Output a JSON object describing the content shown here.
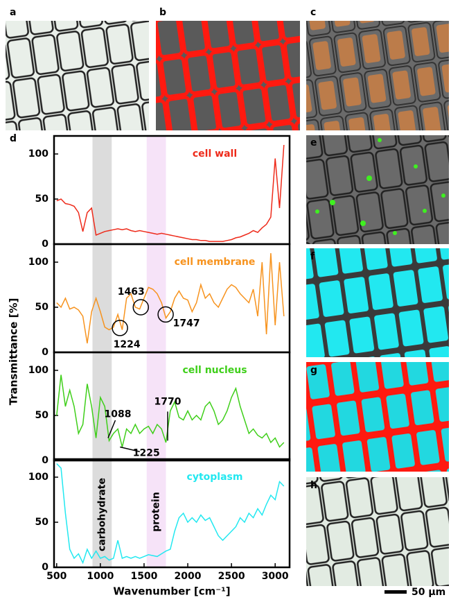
{
  "figure": {
    "panel_labels": [
      "a",
      "b",
      "c",
      "d",
      "e",
      "f",
      "g",
      "h"
    ],
    "y_label": "Transmittance [%]",
    "x_label": "Wavenumber [cm⁻¹]",
    "scale_bar": "50 μm",
    "bands": [
      {
        "label": "carbohydrate",
        "range": [
          910,
          1130
        ],
        "color": "#dcdcdc"
      },
      {
        "label": "protein",
        "range": [
          1530,
          1750
        ],
        "color": "#f6e3f8"
      }
    ]
  },
  "chart_data": [
    {
      "type": "line",
      "xlim": [
        470,
        3165
      ],
      "ylim": [
        0,
        120
      ],
      "yticks": [
        0,
        50,
        100
      ],
      "x": [
        500,
        550,
        600,
        650,
        700,
        750,
        800,
        850,
        900,
        950,
        1000,
        1050,
        1100,
        1150,
        1200,
        1250,
        1300,
        1350,
        1400,
        1450,
        1500,
        1550,
        1600,
        1650,
        1700,
        1750,
        1800,
        1850,
        1900,
        1950,
        2000,
        2050,
        2100,
        2150,
        2200,
        2250,
        2300,
        2350,
        2400,
        2450,
        2500,
        2550,
        2600,
        2650,
        2700,
        2750,
        2800,
        2850,
        2900,
        2950,
        3000,
        3050,
        3100
      ],
      "series": [
        {
          "name": "cell wall",
          "color": "#ee2a1a",
          "values": [
            48,
            50,
            45,
            44,
            42,
            35,
            14,
            35,
            40,
            10,
            12,
            14,
            15,
            16,
            17,
            16,
            17,
            15,
            14,
            15,
            14,
            13,
            12,
            11,
            12,
            11,
            10,
            9,
            8,
            7,
            6,
            5,
            5,
            4,
            4,
            3,
            3,
            3,
            3,
            4,
            5,
            7,
            8,
            10,
            12,
            15,
            13,
            18,
            22,
            30,
            95,
            40,
            110
          ]
        }
      ]
    },
    {
      "type": "line",
      "xlim": [
        470,
        3165
      ],
      "ylim": [
        0,
        120
      ],
      "yticks": [
        0,
        50,
        100
      ],
      "x": [
        500,
        550,
        600,
        650,
        700,
        750,
        800,
        850,
        900,
        950,
        1000,
        1050,
        1100,
        1150,
        1200,
        1250,
        1300,
        1350,
        1400,
        1450,
        1500,
        1550,
        1600,
        1650,
        1700,
        1750,
        1800,
        1850,
        1900,
        1950,
        2000,
        2050,
        2100,
        2150,
        2200,
        2250,
        2300,
        2350,
        2400,
        2450,
        2500,
        2550,
        2600,
        2650,
        2700,
        2750,
        2800,
        2850,
        2900,
        2950,
        3000,
        3050,
        3100
      ],
      "series": [
        {
          "name": "cell membrane",
          "color": "#f7931e",
          "values": [
            55,
            50,
            60,
            48,
            50,
            47,
            40,
            10,
            45,
            60,
            45,
            28,
            25,
            28,
            42,
            25,
            60,
            65,
            50,
            48,
            60,
            72,
            70,
            65,
            55,
            38,
            45,
            60,
            68,
            60,
            58,
            45,
            55,
            75,
            60,
            65,
            55,
            50,
            60,
            70,
            75,
            72,
            65,
            60,
            55,
            70,
            40,
            100,
            20,
            110,
            30,
            100,
            40
          ]
        }
      ],
      "annotations": [
        {
          "x": 1463,
          "y": 50,
          "style": "circle"
        },
        {
          "x": 1224,
          "y": 27,
          "style": "circle"
        },
        {
          "x": 1747,
          "y": 42,
          "style": "circle"
        }
      ]
    },
    {
      "type": "line",
      "xlim": [
        470,
        3165
      ],
      "ylim": [
        0,
        120
      ],
      "yticks": [
        0,
        50,
        100
      ],
      "x": [
        500,
        550,
        600,
        650,
        700,
        750,
        800,
        850,
        900,
        950,
        1000,
        1050,
        1100,
        1150,
        1200,
        1250,
        1300,
        1350,
        1400,
        1450,
        1500,
        1550,
        1600,
        1650,
        1700,
        1750,
        1800,
        1850,
        1900,
        1950,
        2000,
        2050,
        2100,
        2150,
        2200,
        2250,
        2300,
        2350,
        2400,
        2450,
        2500,
        2550,
        2600,
        2650,
        2700,
        2750,
        2800,
        2850,
        2900,
        2950,
        3000,
        3050,
        3100
      ],
      "series": [
        {
          "name": "cell nucleus",
          "color": "#3fcf1a",
          "values": [
            50,
            95,
            60,
            78,
            60,
            30,
            40,
            85,
            60,
            25,
            70,
            60,
            22,
            30,
            35,
            15,
            35,
            30,
            40,
            30,
            35,
            38,
            30,
            40,
            35,
            20,
            55,
            65,
            48,
            45,
            55,
            45,
            50,
            45,
            60,
            65,
            55,
            40,
            45,
            55,
            70,
            80,
            60,
            45,
            30,
            35,
            28,
            25,
            30,
            20,
            25,
            15,
            20
          ]
        }
      ],
      "annotations": [
        {
          "x": 1088,
          "y": 25,
          "style": "arrow"
        },
        {
          "x": 1770,
          "y": 22,
          "style": "arrow"
        },
        {
          "x": 1225,
          "y": 15,
          "style": "arrow"
        }
      ]
    },
    {
      "type": "line",
      "xlim": [
        470,
        3165
      ],
      "ylim": [
        0,
        120
      ],
      "yticks": [
        0,
        50,
        100
      ],
      "xticks": [
        500,
        1000,
        1500,
        2000,
        2500,
        3000
      ],
      "x": [
        500,
        550,
        600,
        650,
        700,
        750,
        800,
        850,
        900,
        950,
        1000,
        1050,
        1100,
        1150,
        1200,
        1250,
        1300,
        1350,
        1400,
        1450,
        1500,
        1550,
        1600,
        1650,
        1700,
        1750,
        1800,
        1850,
        1900,
        1950,
        2000,
        2050,
        2100,
        2150,
        2200,
        2250,
        2300,
        2350,
        2400,
        2450,
        2500,
        2550,
        2600,
        2650,
        2700,
        2750,
        2800,
        2850,
        2900,
        2950,
        3000,
        3050,
        3100
      ],
      "series": [
        {
          "name": "cytoplasm",
          "color": "#22e8f0",
          "values": [
            115,
            110,
            60,
            20,
            10,
            15,
            5,
            20,
            10,
            18,
            10,
            12,
            8,
            10,
            30,
            10,
            12,
            10,
            12,
            10,
            12,
            14,
            13,
            12,
            15,
            18,
            20,
            40,
            55,
            60,
            50,
            55,
            50,
            58,
            52,
            55,
            45,
            35,
            30,
            35,
            40,
            45,
            55,
            50,
            60,
            55,
            65,
            58,
            70,
            80,
            75,
            95,
            90
          ]
        }
      ]
    }
  ]
}
